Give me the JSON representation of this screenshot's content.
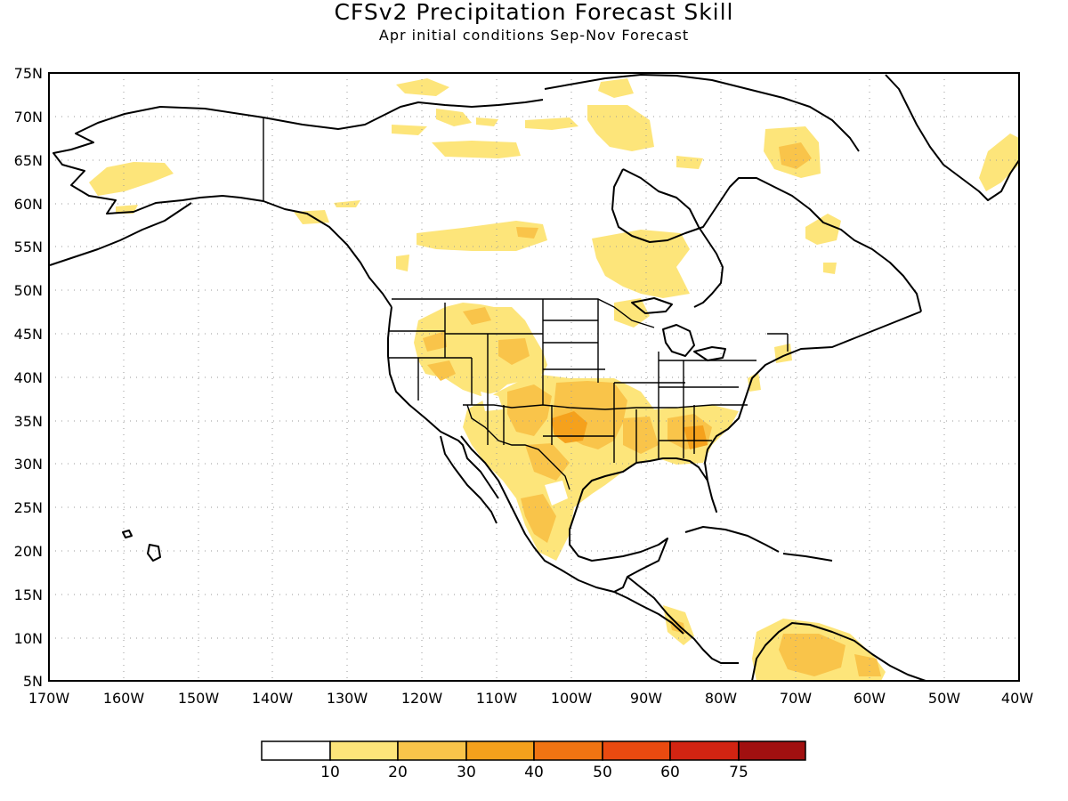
{
  "title": "CFSv2 Precipitation Forecast Skill",
  "subtitle": "Apr initial conditions  Sep-Nov Forecast",
  "map": {
    "lon_range": [
      -170,
      -40
    ],
    "lat_range": [
      5,
      75
    ],
    "lat_labels": [
      "75N",
      "70N",
      "65N",
      "60N",
      "55N",
      "50N",
      "45N",
      "40N",
      "35N",
      "30N",
      "25N",
      "20N",
      "15N",
      "10N",
      "5N"
    ],
    "lon_labels": [
      "170W",
      "160W",
      "150W",
      "140W",
      "130W",
      "120W",
      "110W",
      "100W",
      "90W",
      "80W",
      "70W",
      "60W",
      "50W",
      "40W"
    ],
    "coast_color": "#000000",
    "grid_color": "#9a9a9a"
  },
  "colorbar": {
    "labels": [
      "10",
      "20",
      "30",
      "40",
      "50",
      "60",
      "75"
    ],
    "colors": [
      "#ffffff",
      "#fde57a",
      "#f9c44a",
      "#f5a11c",
      "#f07412",
      "#ea4a10",
      "#d22412",
      "#a11010"
    ]
  }
}
